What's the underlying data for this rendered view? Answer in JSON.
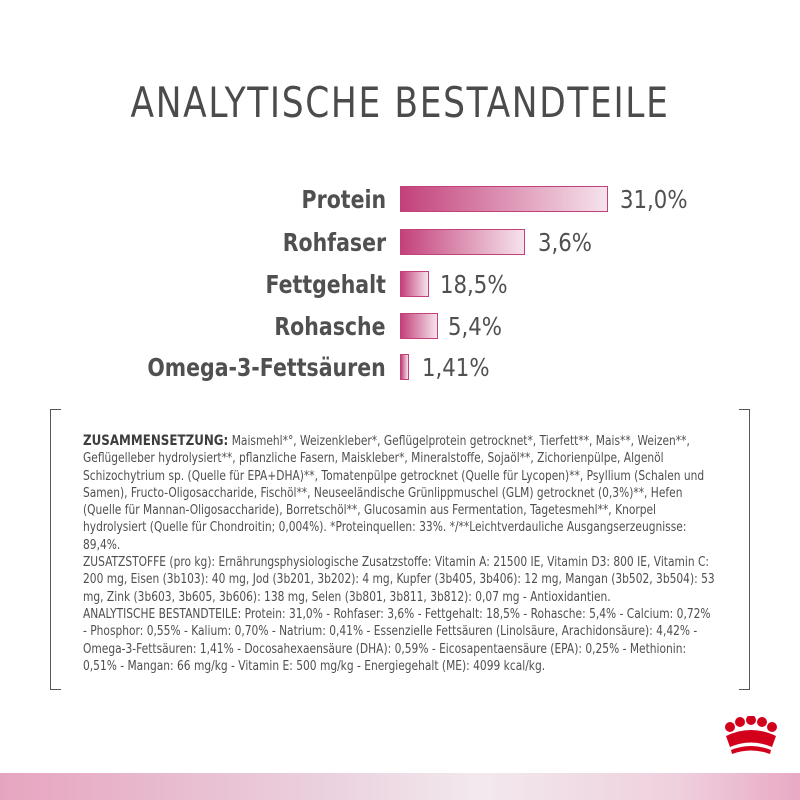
{
  "title": "ANALYTISCHE BESTANDTEILE",
  "chart_data": {
    "type": "bar",
    "categories": [
      "Protein",
      "Rohfaser",
      "Fettgehalt",
      "Rohasche",
      "Omega-3-Fettsäuren"
    ],
    "value_labels": [
      "31,0%",
      "3,6%",
      "18,5%",
      "5,4%",
      "1,41%"
    ]
  },
  "composition": {
    "heading": "ZUSAMMENSETZUNG:",
    "lines": [
      " Maismehl*°, Weizenkleber*, Geflügelprotein getrocknet*, Tierfett**, Mais**, Weizen**,",
      "Geflügelleber hydrolysiert**, pflanzliche Fasern, Maiskleber*, Mineralstoffe, Sojaöl**, Zichorienpülpe, Algenöl",
      "Schizochytrium sp. (Quelle für EPA+DHA)**, Tomatenpülpe getrocknet (Quelle für Lycopen)**, Psyllium (Schalen und",
      "Samen), Fructo-Oligosaccharide, Fischöl**, Neuseeländische Grünlippmuschel (GLM) getrocknet (0,3%)**, Hefen",
      "(Quelle für Mannan-Oligosaccharide), Borretschöl**, Glucosamin aus Fermentation, Tagetesmehl**, Knorpel",
      "hydrolysiert (Quelle für Chondroitin; 0,004%). *Proteinquellen: 33%. */**Leichtverdauliche Ausgangserzeugnisse:",
      "89,4%.",
      "ZUSATZSTOFFE (pro kg): Ernährungsphysiologische Zusatzstoffe: Vitamin A: 21500 IE, Vitamin D3: 800 IE, Vitamin C:",
      "200 mg, Eisen (3b103): 40 mg, Jod (3b201, 3b202): 4 mg, Kupfer (3b405, 3b406): 12 mg, Mangan (3b502, 3b504): 53",
      "mg, Zink (3b603, 3b605, 3b606): 138 mg, Selen (3b801, 3b811, 3b812): 0,07 mg - Antioxidantien.",
      "ANALYTISCHE BESTANDTEILE: Protein: 31,0% - Rohfaser: 3,6% - Fettgehalt: 18,5% - Rohasche: 5,4% - Calcium: 0,72%",
      "- Phosphor: 0,55% - Kalium: 0,70% - Natrium: 0,41% - Essenzielle Fettsäuren (Linolsäure, Arachidonsäure): 4,42% -",
      "Omega-3-Fettsäuren: 1,41% - Docosahexaensäure (DHA): 0,59% - Eicosapentaensäure (EPA): 0,25% - Methionin:",
      "0,51% - Mangan: 66 mg/kg - Vitamin E: 500 mg/kg - Energiegehalt (ME): 4099 kcal/kg."
    ]
  },
  "colors": {
    "bar_dark": "#c3417a",
    "bar_light": "#f6e3ec",
    "text": "#4f4f4f",
    "crown": "#d3001c"
  },
  "icons": {
    "brand_logo": "royal-canin-crown-icon"
  }
}
